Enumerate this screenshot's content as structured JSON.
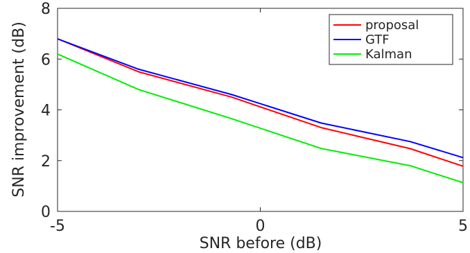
{
  "chart_data": {
    "type": "line",
    "xlabel": "SNR before (dB)",
    "ylabel": "SNR improvement (dB)",
    "xlim": [
      -5,
      5
    ],
    "ylim": [
      0,
      8
    ],
    "x_ticks": [
      "-5",
      "0",
      "5"
    ],
    "y_ticks": [
      "0",
      "2",
      "4",
      "6",
      "8"
    ],
    "grid": false,
    "legend_position": "top-right",
    "series": [
      {
        "name": "proposal",
        "color": "#ff0000",
        "x": [
          -5,
          -3,
          -0.7,
          1.5,
          3.7,
          5
        ],
        "y": [
          6.8,
          5.5,
          4.5,
          3.3,
          2.47,
          1.78
        ]
      },
      {
        "name": "GTF",
        "color": "#0000ff",
        "x": [
          -5,
          -3,
          -0.7,
          1.5,
          3.7,
          5
        ],
        "y": [
          6.8,
          5.6,
          4.6,
          3.48,
          2.75,
          2.12
        ]
      },
      {
        "name": "Kalman",
        "color": "#00ee00",
        "x": [
          -5,
          -3,
          -0.7,
          1.5,
          3.7,
          5
        ],
        "y": [
          6.2,
          4.8,
          3.65,
          2.48,
          1.8,
          1.13
        ]
      }
    ]
  }
}
